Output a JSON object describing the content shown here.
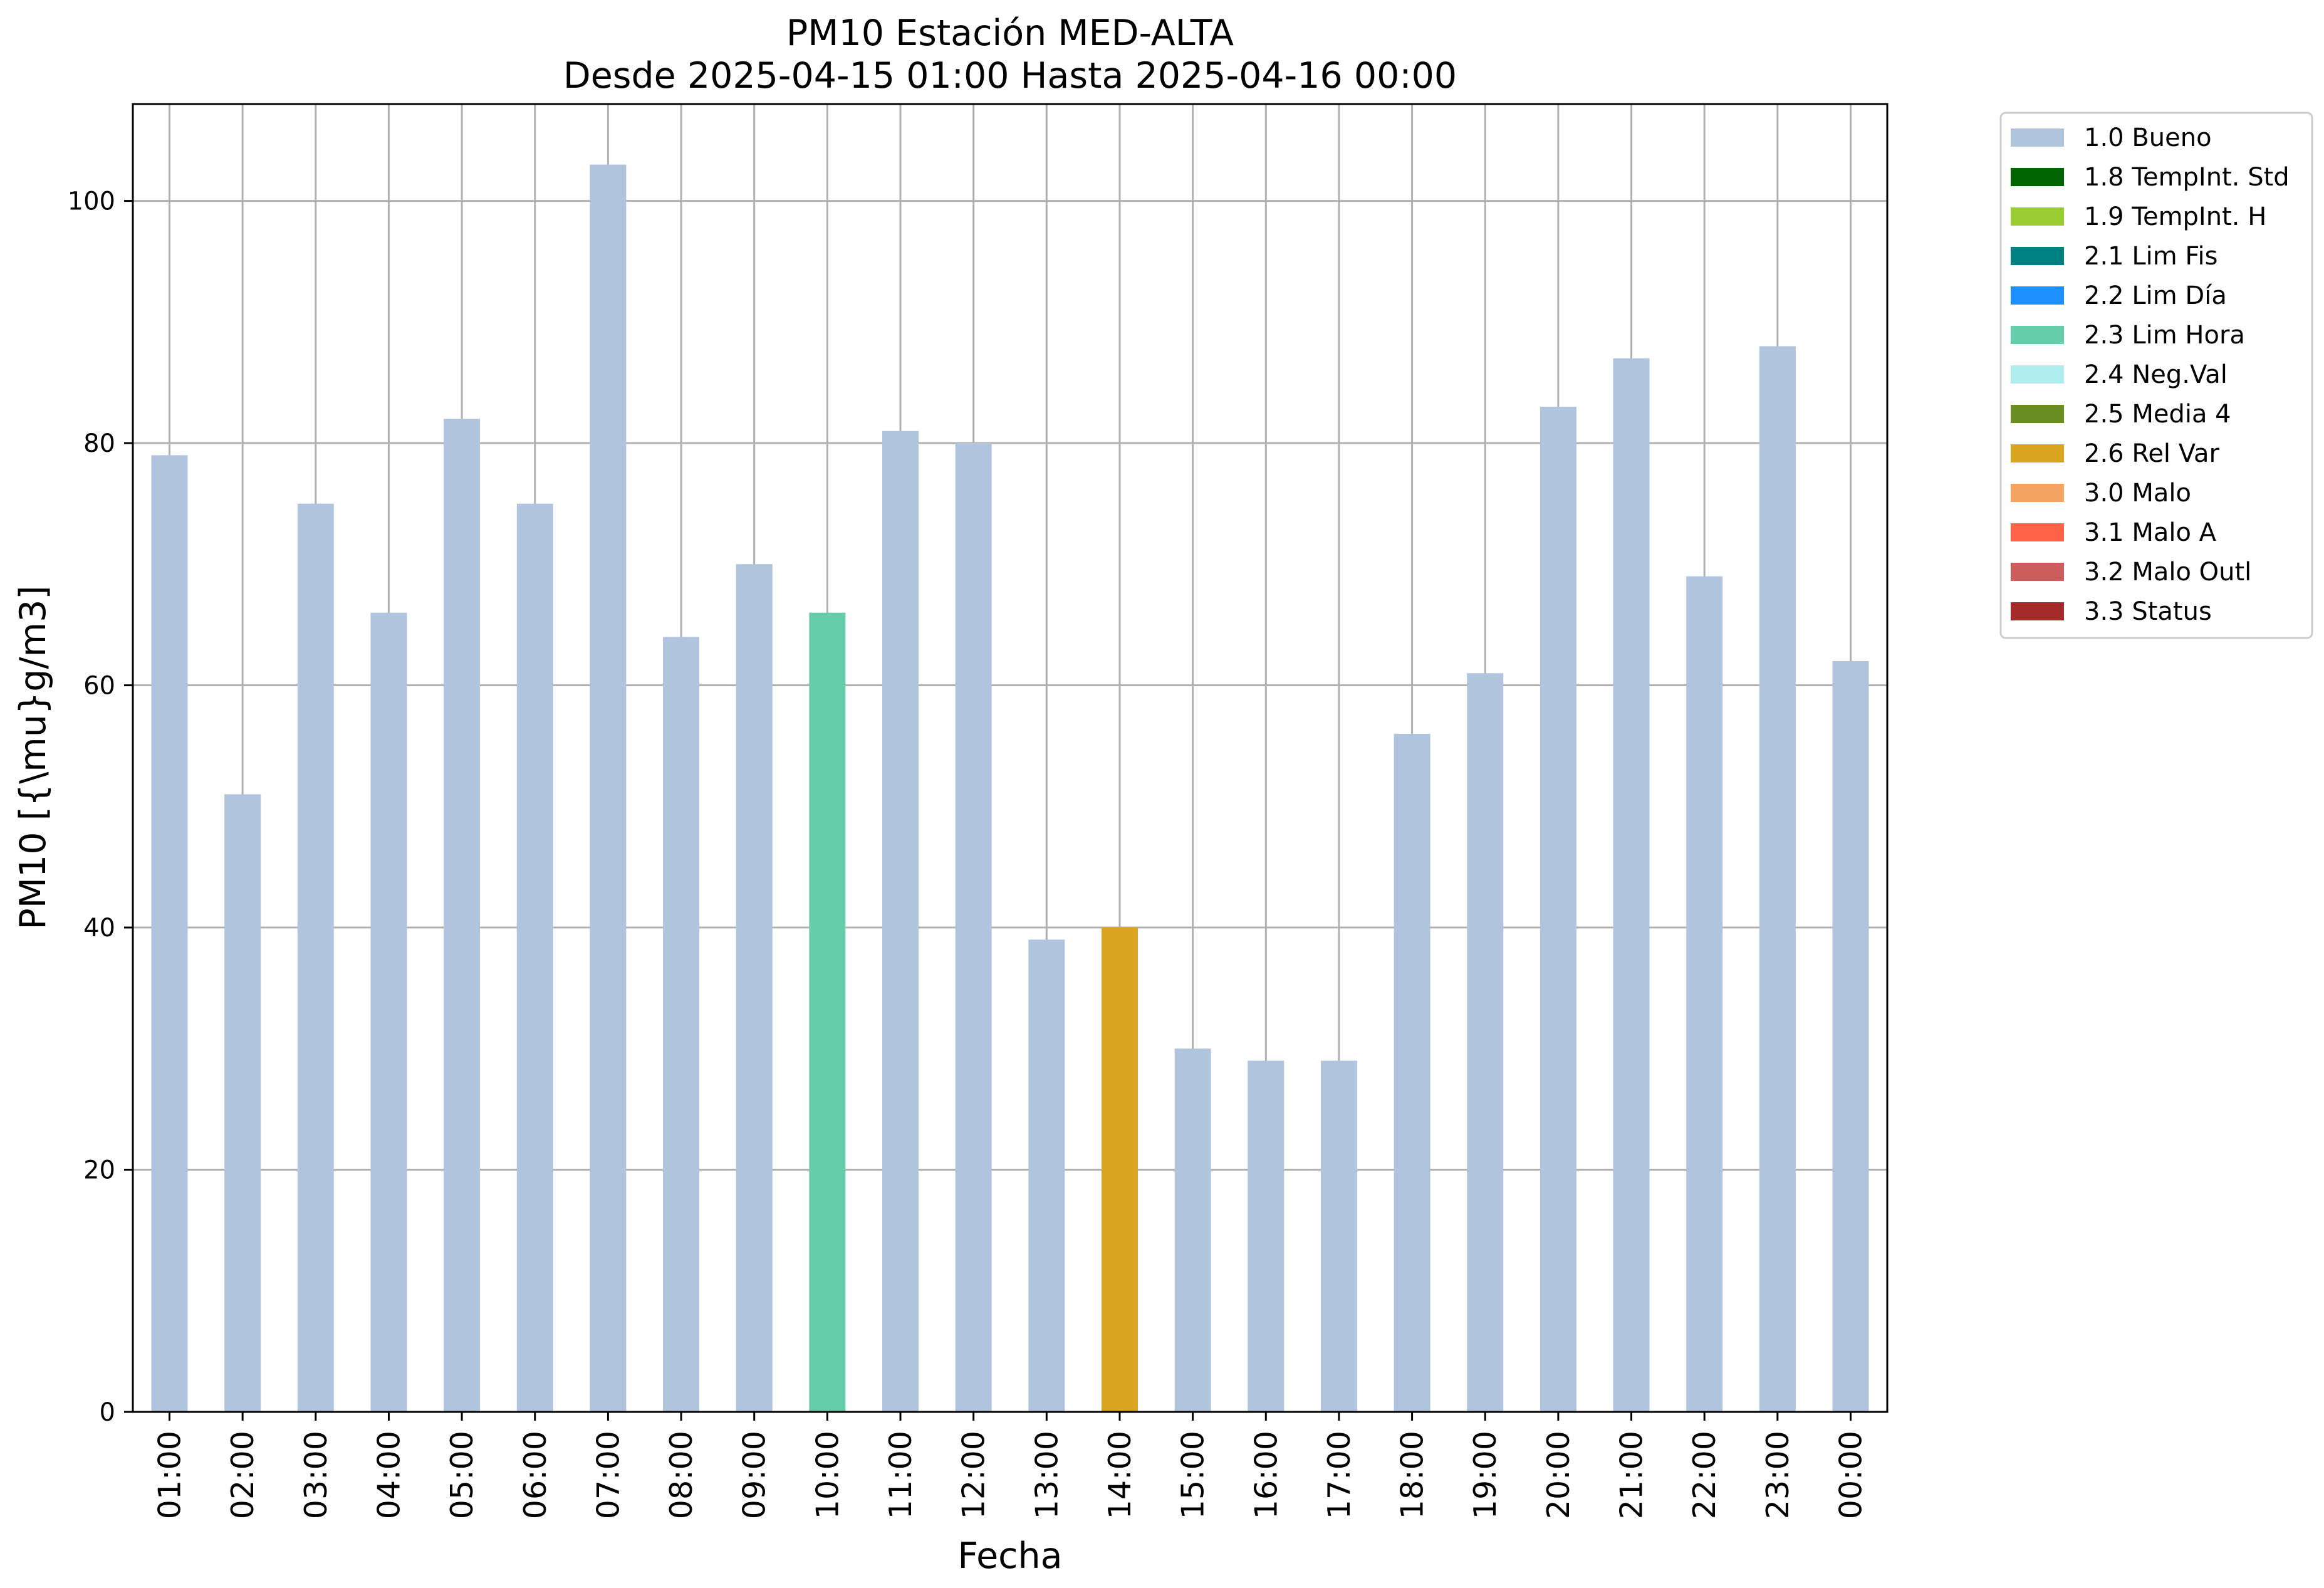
{
  "chart_data": {
    "type": "bar",
    "title": "PM10 Estación MED-ALTA",
    "subtitle": "Desde 2025-04-15 01:00 Hasta 2025-04-16 00:00",
    "xlabel": "Fecha",
    "ylabel": "PM10 [{\\mu}g/m3]",
    "ylim": [
      0,
      108
    ],
    "yticks": [
      0,
      20,
      40,
      60,
      80,
      100
    ],
    "grid": true,
    "legend_position": "outside-top-right",
    "categories": [
      "01:00",
      "02:00",
      "03:00",
      "04:00",
      "05:00",
      "06:00",
      "07:00",
      "08:00",
      "09:00",
      "10:00",
      "11:00",
      "12:00",
      "13:00",
      "14:00",
      "15:00",
      "16:00",
      "17:00",
      "18:00",
      "19:00",
      "20:00",
      "21:00",
      "22:00",
      "23:00",
      "00:00"
    ],
    "values": [
      79,
      51,
      75,
      66,
      82,
      75,
      103,
      64,
      70,
      66,
      81,
      80,
      39,
      40,
      30,
      29,
      29,
      56,
      61,
      83,
      87,
      69,
      88,
      62
    ],
    "flags": [
      "1.0 Bueno",
      "1.0 Bueno",
      "1.0 Bueno",
      "1.0 Bueno",
      "1.0 Bueno",
      "1.0 Bueno",
      "1.0 Bueno",
      "1.0 Bueno",
      "1.0 Bueno",
      "2.3 Lim Hora",
      "1.0 Bueno",
      "1.0 Bueno",
      "1.0 Bueno",
      "2.6 Rel Var",
      "1.0 Bueno",
      "1.0 Bueno",
      "1.0 Bueno",
      "1.0 Bueno",
      "1.0 Bueno",
      "1.0 Bueno",
      "1.0 Bueno",
      "1.0 Bueno",
      "1.0 Bueno",
      "1.0 Bueno"
    ],
    "legend": [
      {
        "name": "1.0 Bueno",
        "color": "#b0c4de"
      },
      {
        "name": "1.8 TempInt. Std",
        "color": "#006400"
      },
      {
        "name": "1.9 TempInt. H",
        "color": "#9acd32"
      },
      {
        "name": "2.1 Lim Fis",
        "color": "#008080"
      },
      {
        "name": "2.2 Lim Día",
        "color": "#1e90ff"
      },
      {
        "name": "2.3 Lim Hora",
        "color": "#66cdaa"
      },
      {
        "name": "2.4 Neg.Val",
        "color": "#afeeee"
      },
      {
        "name": "2.5 Media 4",
        "color": "#6b8e23"
      },
      {
        "name": "2.6 Rel Var",
        "color": "#daa520"
      },
      {
        "name": "3.0 Malo",
        "color": "#f4a460"
      },
      {
        "name": "3.1 Malo A",
        "color": "#ff6347"
      },
      {
        "name": "3.2 Malo Outl",
        "color": "#cd5c5c"
      },
      {
        "name": "3.3 Status",
        "color": "#a52a2a"
      }
    ]
  }
}
